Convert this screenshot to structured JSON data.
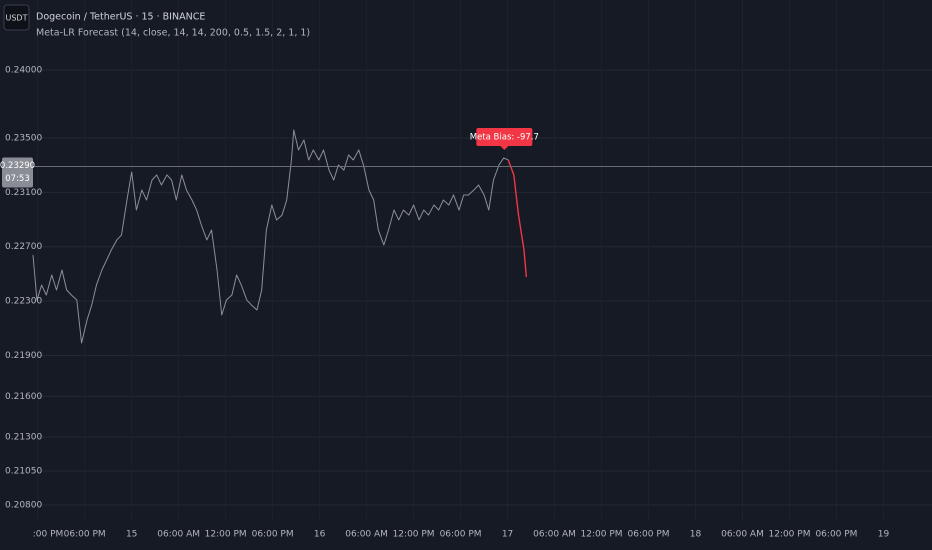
{
  "chart_data": {
    "type": "line",
    "symbol_badge": "USDT",
    "title": "Dogecoin / TetherUS · 15 · BINANCE",
    "subtitle": "Meta-LR Forecast (14, close, 14, 14, 200, 0.5, 1.5, 2, 1, 1)",
    "xlim": [
      11.4,
      126.2
    ],
    "xticks": [
      {
        "value": 12,
        "label": ":00 PM"
      },
      {
        "value": 18,
        "label": "06:00 PM"
      },
      {
        "value": 24,
        "label": "15"
      },
      {
        "value": 30,
        "label": "06:00 AM"
      },
      {
        "value": 36,
        "label": "12:00 PM"
      },
      {
        "value": 42,
        "label": "06:00 PM"
      },
      {
        "value": 48,
        "label": "16"
      },
      {
        "value": 54,
        "label": "06:00 AM"
      },
      {
        "value": 60,
        "label": "12:00 PM"
      },
      {
        "value": 66,
        "label": "06:00 PM"
      },
      {
        "value": 72,
        "label": "17"
      },
      {
        "value": 78,
        "label": "06:00 AM"
      },
      {
        "value": 84,
        "label": "12:00 PM"
      },
      {
        "value": 90,
        "label": "06:00 PM"
      },
      {
        "value": 96,
        "label": "18"
      },
      {
        "value": 102,
        "label": "06:00 AM"
      },
      {
        "value": 108,
        "label": "12:00 PM"
      },
      {
        "value": 114,
        "label": "06:00 PM"
      },
      {
        "value": 120,
        "label": "19"
      }
    ],
    "ylim": [
      0.2069,
      0.24515
    ],
    "yticks": [
      {
        "value": 0.24,
        "label": "0.24000"
      },
      {
        "value": 0.235,
        "label": "0.23500"
      },
      {
        "value": 0.231,
        "label": "0.23100"
      },
      {
        "value": 0.227,
        "label": "0.22700"
      },
      {
        "value": 0.223,
        "label": "0.22300"
      },
      {
        "value": 0.219,
        "label": "0.21900"
      },
      {
        "value": 0.216,
        "label": "0.21600"
      },
      {
        "value": 0.213,
        "label": "0.21300"
      },
      {
        "value": 0.2105,
        "label": "0.21050"
      },
      {
        "value": 0.208,
        "label": "0.20800"
      }
    ],
    "grid": true,
    "series": [
      {
        "color": "#8c8f98",
        "x": [
          11.4,
          11.9,
          12.5,
          13.1,
          13.8,
          14.4,
          15.1,
          15.7,
          16.3,
          17.0,
          17.6,
          18.3,
          18.9,
          19.5,
          20.2,
          20.8,
          21.4,
          22.1,
          22.7,
          23.4,
          24.0,
          24.6,
          25.3,
          25.9,
          26.6,
          27.2,
          27.8,
          28.5,
          29.1,
          29.7,
          30.4,
          31.0,
          31.7,
          32.3,
          32.9,
          33.6,
          34.2,
          34.9,
          35.5,
          36.1,
          36.8,
          37.4,
          38.0,
          38.7,
          39.3,
          40.0,
          40.6,
          41.2,
          41.9,
          42.5,
          43.2,
          43.8,
          44.4,
          44.7,
          45.3,
          46.0,
          46.6,
          47.2,
          47.9,
          48.5,
          49.2,
          49.8,
          50.4,
          51.1,
          51.7,
          52.3,
          53.0,
          53.6,
          54.3,
          54.9,
          55.5,
          56.2,
          56.8,
          57.5,
          58.1,
          58.7,
          59.4,
          60.0,
          60.7,
          61.3,
          61.9,
          62.6,
          63.2,
          63.8,
          64.5,
          65.1,
          65.8,
          66.4,
          67.0,
          67.7,
          68.3,
          69.0,
          69.6,
          70.2,
          70.9,
          71.5,
          72.1
        ],
        "values": [
          0.22639,
          0.22308,
          0.22418,
          0.22345,
          0.22492,
          0.22382,
          0.22529,
          0.22382,
          0.22345,
          0.22308,
          0.21992,
          0.22161,
          0.22271,
          0.22418,
          0.22529,
          0.22602,
          0.22676,
          0.2275,
          0.22786,
          0.23044,
          0.2325,
          0.2297,
          0.23117,
          0.23044,
          0.23191,
          0.23228,
          0.23154,
          0.23228,
          0.23191,
          0.23044,
          0.23228,
          0.23117,
          0.23044,
          0.2297,
          0.2286,
          0.2275,
          0.22823,
          0.22529,
          0.22198,
          0.22308,
          0.22345,
          0.22492,
          0.22418,
          0.22308,
          0.22271,
          0.22235,
          0.22382,
          0.22823,
          0.23007,
          0.22897,
          0.22933,
          0.23044,
          0.23338,
          0.23559,
          0.23412,
          0.23485,
          0.23338,
          0.23412,
          0.23338,
          0.23412,
          0.23264,
          0.23191,
          0.23301,
          0.23264,
          0.23375,
          0.23338,
          0.23412,
          0.23301,
          0.23117,
          0.23044,
          0.22823,
          0.22713,
          0.22823,
          0.2297,
          0.22897,
          0.2297,
          0.22933,
          0.23007,
          0.22897,
          0.2297,
          0.22933,
          0.23007,
          0.2297,
          0.23044,
          0.23007,
          0.23081,
          0.2297,
          0.23081,
          0.23081,
          0.23117,
          0.23154,
          0.23081,
          0.2297,
          0.23191,
          0.23301,
          0.23353,
          0.23338
        ]
      },
      {
        "color": "#f23645",
        "x": [
          72.1,
          72.8,
          73.4,
          74.1,
          74.4
        ],
        "values": [
          0.23338,
          0.23228,
          0.22933,
          0.22676,
          0.22477
        ]
      }
    ],
    "last_price": {
      "value": 0.2329,
      "label": "0.23290",
      "countdown": "07:53"
    },
    "annotation": {
      "text": "Meta Bias: -97.7",
      "color": "#f23645"
    }
  }
}
